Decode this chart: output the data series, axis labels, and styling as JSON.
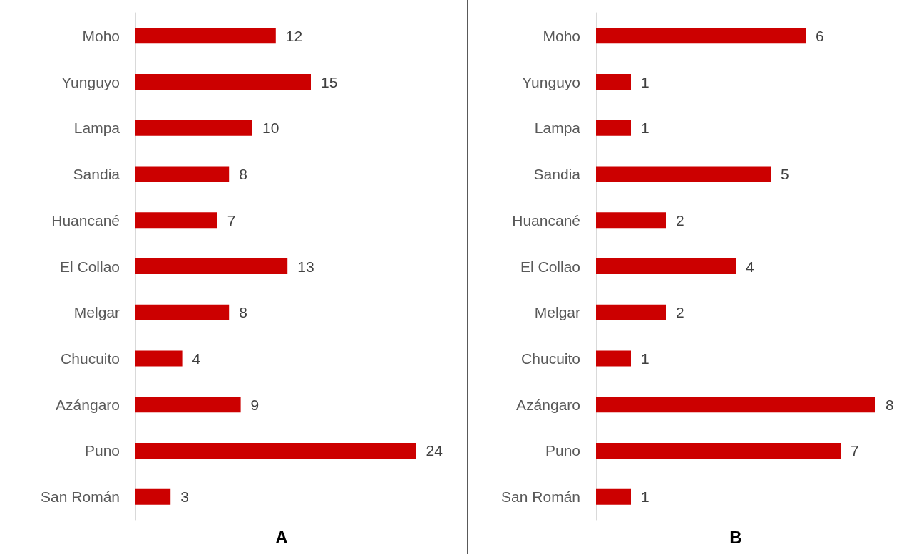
{
  "chart_data": [
    {
      "type": "bar",
      "orientation": "horizontal",
      "xlabel": "A",
      "categories": [
        "Moho",
        "Yunguyo",
        "Lampa",
        "Sandia",
        "Huancané",
        "El Collao",
        "Melgar",
        "Chucuito",
        "Azángaro",
        "Puno",
        "San Román"
      ],
      "values": [
        12,
        15,
        10,
        8,
        7,
        13,
        8,
        4,
        9,
        24,
        3
      ],
      "color": "#cc0000",
      "data_labels": true
    },
    {
      "type": "bar",
      "orientation": "horizontal",
      "xlabel": "B",
      "categories": [
        "Moho",
        "Yunguyo",
        "Lampa",
        "Sandia",
        "Huancané",
        "El Collao",
        "Melgar",
        "Chucuito",
        "Azángaro",
        "Puno",
        "San Román"
      ],
      "values": [
        6,
        1,
        1,
        5,
        2,
        4,
        2,
        1,
        8,
        7,
        1
      ],
      "color": "#cc0000",
      "data_labels": true
    }
  ]
}
